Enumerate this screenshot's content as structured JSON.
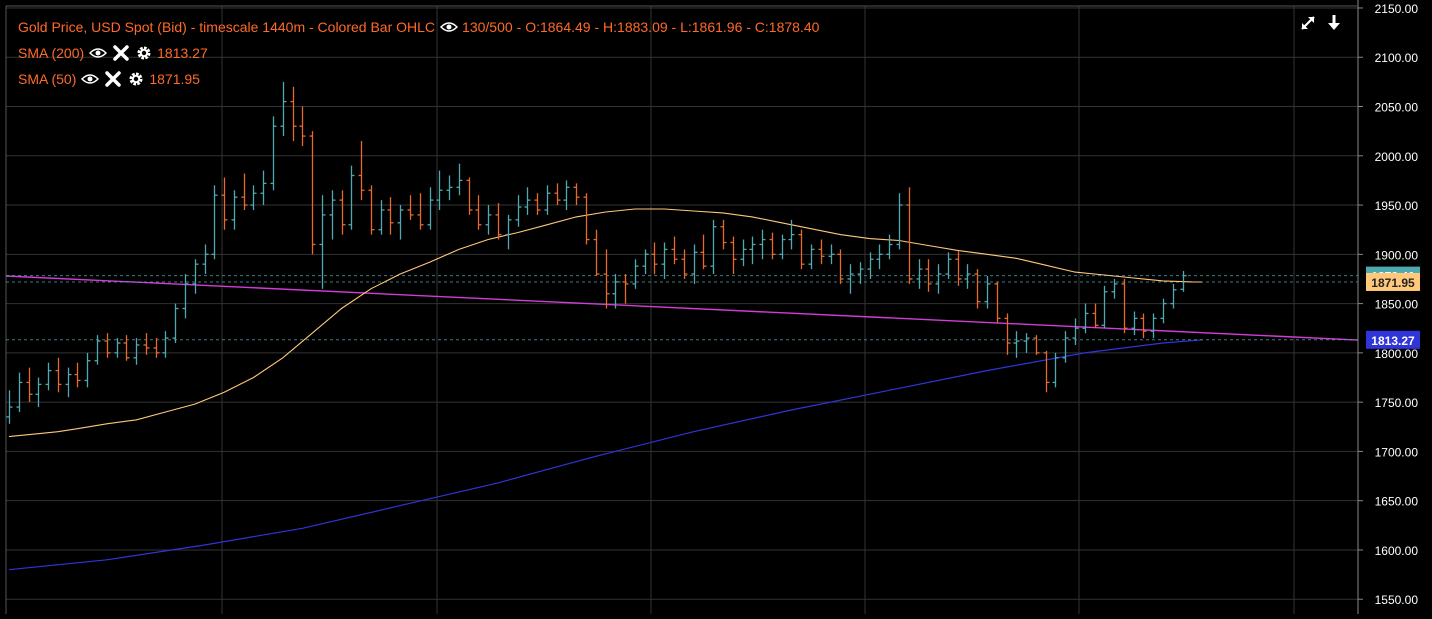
{
  "legend": {
    "main": {
      "title": "Gold Price, USD Spot (Bid) - timescale 1440m - Colored Bar OHLC",
      "range": "130/500",
      "ohlc": "- O:1864.49 - H:1883.09 - L:1861.96 - C:1878.40"
    },
    "sma200": {
      "label": "SMA (200)",
      "value": "1813.27"
    },
    "sma50": {
      "label": "SMA (50)",
      "value": "1871.95"
    }
  },
  "icons": {
    "visibility": "eye-icon",
    "remove": "close-icon",
    "settings": "gear-icon",
    "expand": "expand-icon",
    "download": "download-icon"
  },
  "colors": {
    "background": "#000000",
    "bull": "#4fa9b1",
    "bear": "#e8692b",
    "sma50": "#ffc87a",
    "sma200": "#2f35d8",
    "trendline": "#d33cd6",
    "legend_text": "#ff6a2a",
    "axis_text": "#ffffff",
    "grid": "#333333"
  },
  "chart_data": {
    "type": "ohlc",
    "title": "Gold Price, USD Spot (Bid) - timescale 1440m - Colored Bar OHLC",
    "ylim": [
      1535,
      2152
    ],
    "y_ticks": [
      "2150.00",
      "2100.00",
      "2050.00",
      "2000.00",
      "1950.00",
      "1900.00",
      "1850.00",
      "1800.00",
      "1750.00",
      "1700.00",
      "1650.00",
      "1600.00",
      "1550.00"
    ],
    "last_values": {
      "close": "1878.40",
      "sma50": "1871.95",
      "sma200": "1813.27"
    },
    "ohlc": [
      [
        1735,
        1762,
        1728,
        1745
      ],
      [
        1745,
        1780,
        1740,
        1770
      ],
      [
        1770,
        1785,
        1750,
        1758
      ],
      [
        1758,
        1775,
        1745,
        1768
      ],
      [
        1768,
        1790,
        1762,
        1782
      ],
      [
        1782,
        1795,
        1760,
        1768
      ],
      [
        1768,
        1785,
        1755,
        1778
      ],
      [
        1778,
        1790,
        1765,
        1772
      ],
      [
        1772,
        1800,
        1765,
        1792
      ],
      [
        1792,
        1818,
        1788,
        1812
      ],
      [
        1812,
        1820,
        1795,
        1800
      ],
      [
        1800,
        1815,
        1795,
        1810
      ],
      [
        1810,
        1818,
        1792,
        1795
      ],
      [
        1795,
        1815,
        1788,
        1808
      ],
      [
        1808,
        1820,
        1798,
        1805
      ],
      [
        1805,
        1815,
        1795,
        1800
      ],
      [
        1800,
        1822,
        1795,
        1815
      ],
      [
        1815,
        1850,
        1810,
        1845
      ],
      [
        1845,
        1880,
        1835,
        1870
      ],
      [
        1870,
        1895,
        1860,
        1890
      ],
      [
        1890,
        1910,
        1880,
        1900
      ],
      [
        1900,
        1970,
        1895,
        1960
      ],
      [
        1960,
        1978,
        1925,
        1935
      ],
      [
        1935,
        1965,
        1925,
        1958
      ],
      [
        1958,
        1982,
        1945,
        1950
      ],
      [
        1950,
        1970,
        1945,
        1962
      ],
      [
        1962,
        1985,
        1950,
        1972
      ],
      [
        1972,
        2040,
        1965,
        2030
      ],
      [
        2030,
        2075,
        2020,
        2055
      ],
      [
        2055,
        2070,
        2015,
        2030
      ],
      [
        2030,
        2050,
        2010,
        2020
      ],
      [
        2020,
        2025,
        1900,
        1910
      ],
      [
        1910,
        1960,
        1865,
        1940
      ],
      [
        1940,
        1965,
        1915,
        1955
      ],
      [
        1955,
        1965,
        1920,
        1930
      ],
      [
        1930,
        1990,
        1925,
        1980
      ],
      [
        1980,
        2015,
        1955,
        1965
      ],
      [
        1965,
        1970,
        1920,
        1925
      ],
      [
        1925,
        1955,
        1920,
        1945
      ],
      [
        1945,
        1958,
        1920,
        1932
      ],
      [
        1932,
        1950,
        1915,
        1945
      ],
      [
        1945,
        1960,
        1935,
        1940
      ],
      [
        1940,
        1962,
        1925,
        1930
      ],
      [
        1930,
        1968,
        1925,
        1955
      ],
      [
        1955,
        1985,
        1945,
        1965
      ],
      [
        1965,
        1980,
        1955,
        1968
      ],
      [
        1968,
        1992,
        1960,
        1975
      ],
      [
        1975,
        1978,
        1940,
        1945
      ],
      [
        1945,
        1960,
        1925,
        1930
      ],
      [
        1930,
        1950,
        1920,
        1940
      ],
      [
        1940,
        1952,
        1915,
        1920
      ],
      [
        1920,
        1940,
        1905,
        1935
      ],
      [
        1935,
        1960,
        1928,
        1948
      ],
      [
        1948,
        1968,
        1940,
        1955
      ],
      [
        1955,
        1962,
        1940,
        1945
      ],
      [
        1945,
        1970,
        1940,
        1962
      ],
      [
        1962,
        1972,
        1950,
        1955
      ],
      [
        1955,
        1975,
        1945,
        1968
      ],
      [
        1968,
        1972,
        1950,
        1958
      ],
      [
        1958,
        1962,
        1910,
        1915
      ],
      [
        1915,
        1925,
        1878,
        1880
      ],
      [
        1880,
        1905,
        1845,
        1860
      ],
      [
        1860,
        1880,
        1845,
        1872
      ],
      [
        1872,
        1880,
        1850,
        1870
      ],
      [
        1870,
        1895,
        1865,
        1888
      ],
      [
        1888,
        1905,
        1880,
        1900
      ],
      [
        1900,
        1912,
        1880,
        1890
      ],
      [
        1890,
        1912,
        1875,
        1905
      ],
      [
        1905,
        1918,
        1890,
        1895
      ],
      [
        1895,
        1905,
        1875,
        1880
      ],
      [
        1880,
        1910,
        1870,
        1902
      ],
      [
        1902,
        1920,
        1885,
        1888
      ],
      [
        1888,
        1935,
        1880,
        1928
      ],
      [
        1928,
        1935,
        1905,
        1912
      ],
      [
        1912,
        1918,
        1880,
        1895
      ],
      [
        1895,
        1915,
        1888,
        1905
      ],
      [
        1905,
        1918,
        1890,
        1910
      ],
      [
        1910,
        1925,
        1895,
        1915
      ],
      [
        1915,
        1922,
        1895,
        1900
      ],
      [
        1900,
        1920,
        1895,
        1915
      ],
      [
        1915,
        1935,
        1905,
        1920
      ],
      [
        1920,
        1925,
        1885,
        1890
      ],
      [
        1890,
        1910,
        1885,
        1905
      ],
      [
        1905,
        1915,
        1890,
        1898
      ],
      [
        1898,
        1910,
        1890,
        1900
      ],
      [
        1900,
        1905,
        1870,
        1875
      ],
      [
        1875,
        1890,
        1860,
        1880
      ],
      [
        1880,
        1892,
        1870,
        1885
      ],
      [
        1885,
        1902,
        1875,
        1895
      ],
      [
        1895,
        1910,
        1885,
        1900
      ],
      [
        1900,
        1920,
        1895,
        1910
      ],
      [
        1910,
        1962,
        1905,
        1950
      ],
      [
        1950,
        1968,
        1870,
        1875
      ],
      [
        1875,
        1895,
        1865,
        1885
      ],
      [
        1885,
        1895,
        1862,
        1870
      ],
      [
        1870,
        1890,
        1860,
        1880
      ],
      [
        1880,
        1902,
        1875,
        1895
      ],
      [
        1895,
        1903,
        1868,
        1875
      ],
      [
        1875,
        1890,
        1865,
        1880
      ],
      [
        1880,
        1885,
        1845,
        1852
      ],
      [
        1852,
        1878,
        1845,
        1870
      ],
      [
        1870,
        1872,
        1830,
        1835
      ],
      [
        1835,
        1840,
        1798,
        1810
      ],
      [
        1810,
        1822,
        1795,
        1812
      ],
      [
        1812,
        1820,
        1800,
        1815
      ],
      [
        1815,
        1818,
        1798,
        1800
      ],
      [
        1800,
        1802,
        1760,
        1770
      ],
      [
        1770,
        1800,
        1765,
        1795
      ],
      [
        1795,
        1822,
        1790,
        1815
      ],
      [
        1815,
        1835,
        1808,
        1825
      ],
      [
        1825,
        1850,
        1820,
        1840
      ],
      [
        1840,
        1850,
        1825,
        1828
      ],
      [
        1828,
        1868,
        1825,
        1862
      ],
      [
        1862,
        1875,
        1855,
        1870
      ],
      [
        1870,
        1875,
        1820,
        1825
      ],
      [
        1825,
        1842,
        1818,
        1835
      ],
      [
        1835,
        1840,
        1815,
        1822
      ],
      [
        1822,
        1840,
        1815,
        1835
      ],
      [
        1835,
        1855,
        1830,
        1850
      ],
      [
        1850,
        1870,
        1845,
        1864
      ],
      [
        1864.49,
        1883.09,
        1861.96,
        1878.4
      ]
    ],
    "sma50": [
      [
        0,
        1715
      ],
      [
        1,
        1716
      ],
      [
        3,
        1718
      ],
      [
        5,
        1720
      ],
      [
        7,
        1723
      ],
      [
        10,
        1728
      ],
      [
        13,
        1732
      ],
      [
        16,
        1740
      ],
      [
        19,
        1748
      ],
      [
        22,
        1760
      ],
      [
        25,
        1775
      ],
      [
        28,
        1795
      ],
      [
        31,
        1820
      ],
      [
        34,
        1845
      ],
      [
        37,
        1865
      ],
      [
        40,
        1880
      ],
      [
        43,
        1892
      ],
      [
        46,
        1905
      ],
      [
        49,
        1915
      ],
      [
        52,
        1922
      ],
      [
        55,
        1930
      ],
      [
        58,
        1938
      ],
      [
        61,
        1943
      ],
      [
        64,
        1946
      ],
      [
        67,
        1946
      ],
      [
        70,
        1944
      ],
      [
        73,
        1942
      ],
      [
        76,
        1938
      ],
      [
        79,
        1932
      ],
      [
        82,
        1926
      ],
      [
        85,
        1920
      ],
      [
        88,
        1916
      ],
      [
        91,
        1914
      ],
      [
        94,
        1909
      ],
      [
        97,
        1904
      ],
      [
        100,
        1900
      ],
      [
        103,
        1896
      ],
      [
        106,
        1889
      ],
      [
        109,
        1882
      ],
      [
        112,
        1879
      ],
      [
        115,
        1876
      ],
      [
        118,
        1873
      ],
      [
        121,
        1872
      ],
      [
        122,
        1871.95
      ]
    ],
    "sma200": [
      [
        0,
        1580
      ],
      [
        10,
        1590
      ],
      [
        20,
        1605
      ],
      [
        30,
        1622
      ],
      [
        40,
        1645
      ],
      [
        50,
        1668
      ],
      [
        60,
        1695
      ],
      [
        70,
        1720
      ],
      [
        80,
        1742
      ],
      [
        90,
        1762
      ],
      [
        100,
        1782
      ],
      [
        110,
        1800
      ],
      [
        118,
        1810
      ],
      [
        122,
        1813.27
      ]
    ],
    "trendline": [
      [
        0,
        1878
      ],
      [
        127,
        1813
      ]
    ],
    "price_lines": [
      "1878.40",
      "1871.95",
      "1813.27"
    ]
  }
}
